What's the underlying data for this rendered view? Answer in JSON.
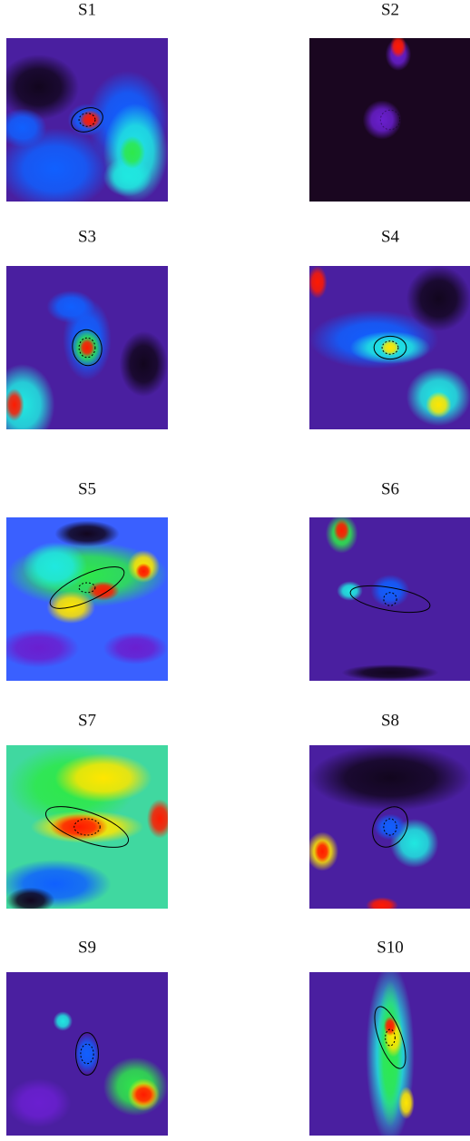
{
  "panels": [
    {
      "label": "S1"
    },
    {
      "label": "S2"
    },
    {
      "label": "S3"
    },
    {
      "label": "S4"
    },
    {
      "label": "S5"
    },
    {
      "label": "S6"
    },
    {
      "label": "S7"
    },
    {
      "label": "S8"
    },
    {
      "label": "S9"
    },
    {
      "label": "S10"
    }
  ]
}
